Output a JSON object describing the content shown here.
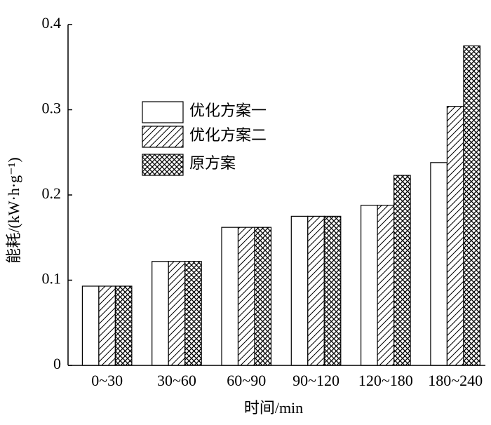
{
  "chart_data": {
    "type": "bar",
    "xlabel": "时间/min",
    "ylabel": "能耗/(kW·h·g⁻¹)",
    "categories": [
      "0~30",
      "30~60",
      "60~90",
      "90~120",
      "120~180",
      "180~240"
    ],
    "series": [
      {
        "name": "优化方案一",
        "color": "#000000",
        "pattern": "solid",
        "values": [
          0.093,
          0.122,
          0.162,
          0.175,
          0.188,
          0.238
        ]
      },
      {
        "name": "优化方案二",
        "color": "#000000",
        "pattern": "hatch",
        "values": [
          0.093,
          0.122,
          0.162,
          0.175,
          0.188,
          0.304
        ]
      },
      {
        "name": "原方案",
        "color": "#000000",
        "pattern": "crosshatch",
        "values": [
          0.093,
          0.122,
          0.162,
          0.175,
          0.223,
          0.375
        ]
      }
    ],
    "ylim": [
      0,
      0.4
    ],
    "yticks": [
      0,
      0.1,
      0.2,
      0.3,
      0.4
    ],
    "grid": false,
    "legend": "upper left"
  }
}
